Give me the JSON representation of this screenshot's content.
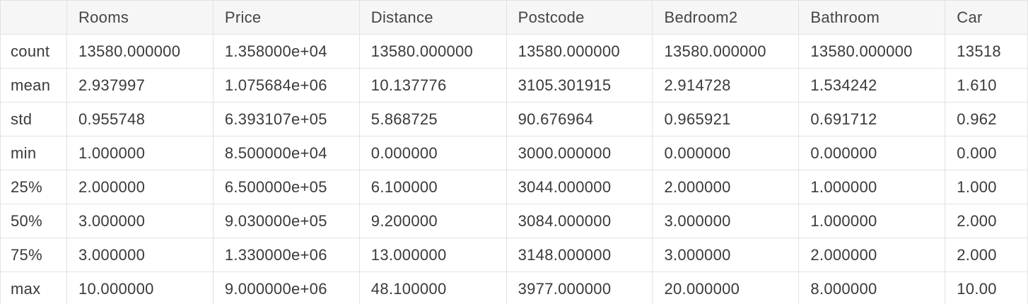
{
  "table": {
    "index_header": "",
    "columns": [
      "Rooms",
      "Price",
      "Distance",
      "Postcode",
      "Bedroom2",
      "Bathroom",
      "Car"
    ],
    "rows": [
      {
        "label": "count",
        "cells": [
          "13580.000000",
          "1.358000e+04",
          "13580.000000",
          "13580.000000",
          "13580.000000",
          "13580.000000",
          "13518"
        ]
      },
      {
        "label": "mean",
        "cells": [
          "2.937997",
          "1.075684e+06",
          "10.137776",
          "3105.301915",
          "2.914728",
          "1.534242",
          "1.610"
        ]
      },
      {
        "label": "std",
        "cells": [
          "0.955748",
          "6.393107e+05",
          "5.868725",
          "90.676964",
          "0.965921",
          "0.691712",
          "0.962"
        ]
      },
      {
        "label": "min",
        "cells": [
          "1.000000",
          "8.500000e+04",
          "0.000000",
          "3000.000000",
          "0.000000",
          "0.000000",
          "0.000"
        ]
      },
      {
        "label": "25%",
        "cells": [
          "2.000000",
          "6.500000e+05",
          "6.100000",
          "3044.000000",
          "2.000000",
          "1.000000",
          "1.000"
        ]
      },
      {
        "label": "50%",
        "cells": [
          "3.000000",
          "9.030000e+05",
          "9.200000",
          "3084.000000",
          "3.000000",
          "1.000000",
          "2.000"
        ]
      },
      {
        "label": "75%",
        "cells": [
          "3.000000",
          "1.330000e+06",
          "13.000000",
          "3148.000000",
          "3.000000",
          "2.000000",
          "2.000"
        ]
      },
      {
        "label": "max",
        "cells": [
          "10.000000",
          "9.000000e+06",
          "48.100000",
          "3977.000000",
          "20.000000",
          "8.000000",
          "10.00"
        ]
      }
    ]
  }
}
